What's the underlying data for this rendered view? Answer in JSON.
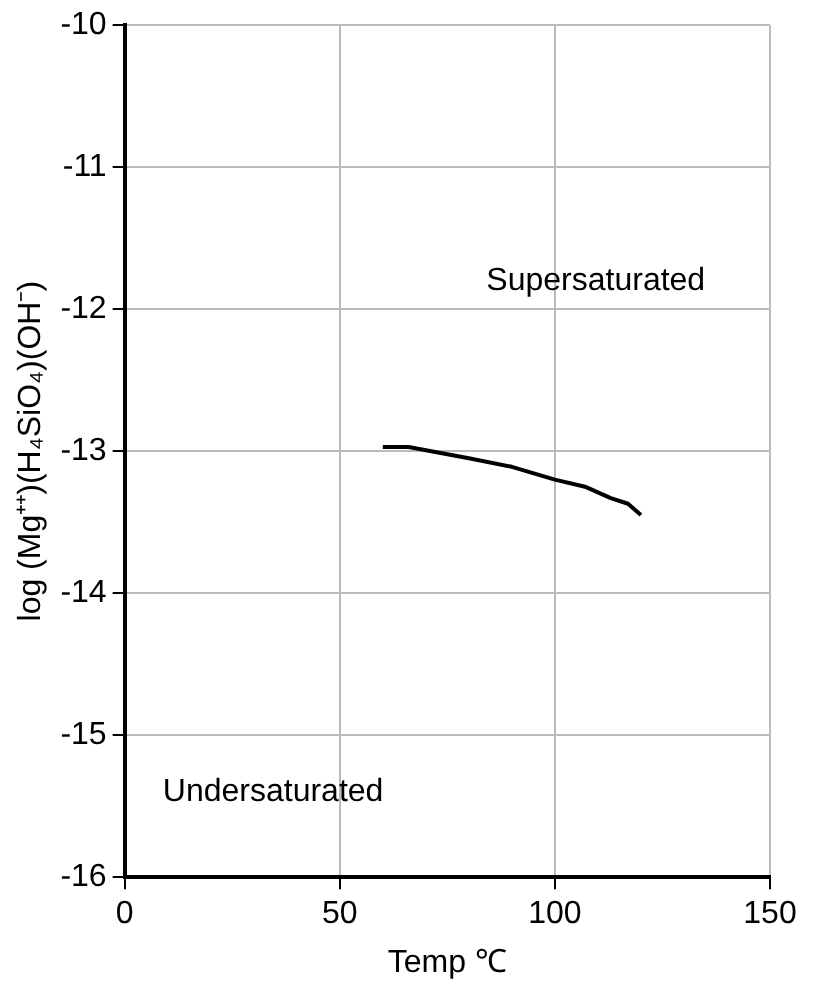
{
  "chart_data": {
    "type": "line",
    "xlabel": "Temp ℃",
    "ylabel": "log (Mg⁺⁺)(H₄SiO₄)(OH⁻)",
    "x": [
      60,
      66,
      80,
      90,
      100,
      107,
      113,
      117,
      120
    ],
    "series": [
      {
        "color": "#000000",
        "values": [
          -12.97,
          -12.97,
          -13.05,
          -13.11,
          -13.2,
          -13.25,
          -13.33,
          -13.37,
          -13.45
        ]
      }
    ],
    "xlim": [
      0,
      150
    ],
    "xticks": [
      0,
      50,
      100,
      150
    ],
    "ylim": [
      -16,
      -10
    ],
    "yticks": [
      -16,
      -15,
      -14,
      -13,
      -12,
      -11,
      -10
    ],
    "grid": true,
    "legend": false,
    "marker": "none",
    "line_style": "solid",
    "annotations": [
      "Supersaturated",
      "Undersaturated"
    ]
  }
}
